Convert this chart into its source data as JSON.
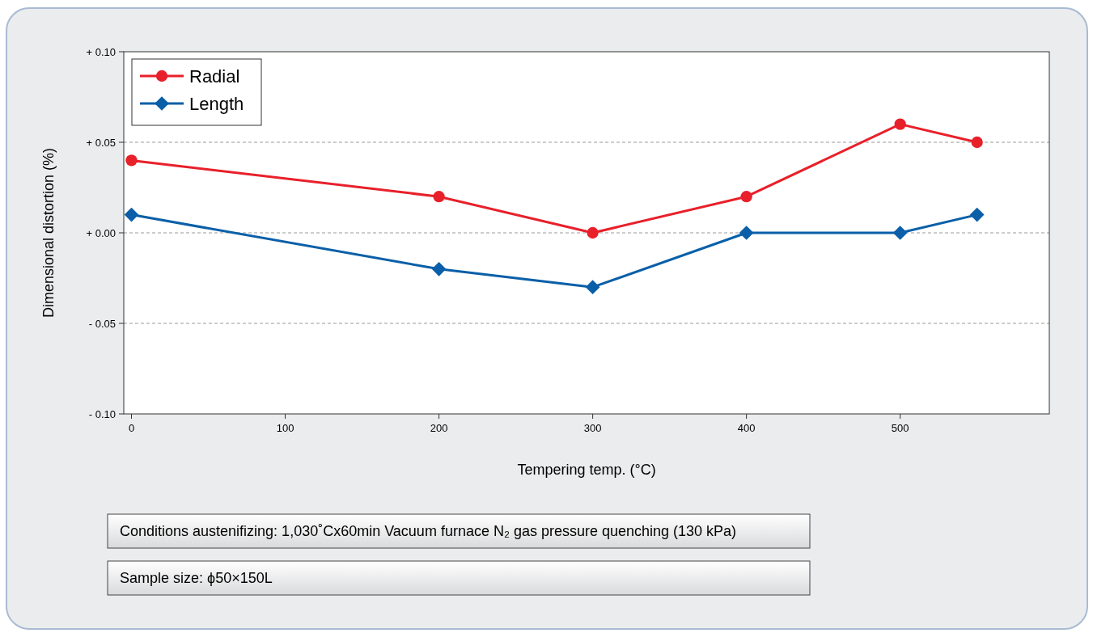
{
  "chart_data": {
    "type": "line",
    "xlabel": "Tempering temp. (°C)",
    "ylabel": "Dimensional distortion (%)",
    "x": [
      0,
      200,
      300,
      400,
      500,
      550
    ],
    "series": [
      {
        "name": "Radial",
        "color": "#e8202a",
        "marker": "circle",
        "values": [
          0.04,
          0.02,
          0,
          0.02,
          0.06,
          0.05
        ]
      },
      {
        "name": "Length",
        "color": "#0a5fa8",
        "marker": "diamond",
        "values": [
          0.01,
          -0.02,
          -0.03,
          0,
          0,
          0.01
        ]
      }
    ],
    "xlim": [
      -5,
      597
    ],
    "xticks": [
      0,
      100,
      200,
      300,
      400,
      500
    ],
    "ylim": [
      -0.1,
      0.1
    ],
    "yticks": [
      {
        "value": -0.1,
        "label": "- 0.10"
      },
      {
        "value": -0.05,
        "label": "- 0.05"
      },
      {
        "value": 0,
        "label": "+ 0.00"
      },
      {
        "value": 0.05,
        "label": "+ 0.05"
      },
      {
        "value": 0.1,
        "label": "+ 0.10"
      }
    ],
    "grid": "y",
    "legend": "top left",
    "line_style": "solid",
    "annotations": [
      "Conditions austenifizing: 1,030˚Cx60min Vacuum furnace N₂ gas pressure quenching (130 kPa)",
      "Sample size: ϕ50×150L"
    ]
  }
}
